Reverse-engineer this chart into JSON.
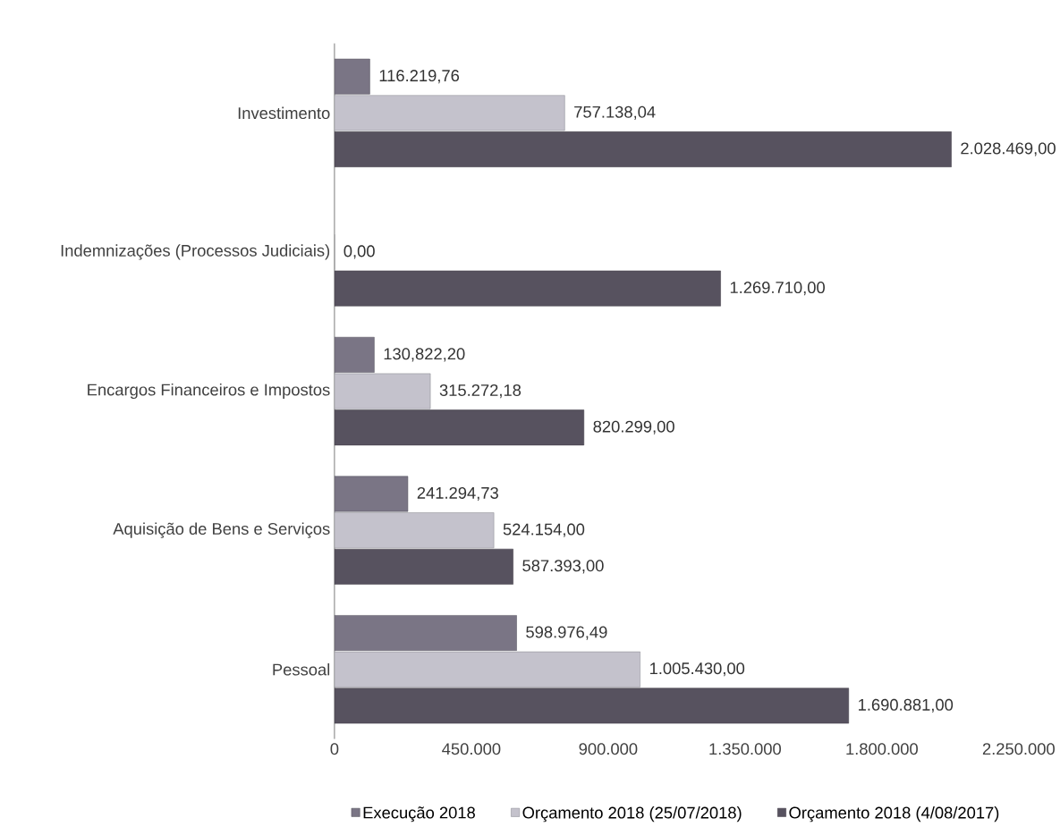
{
  "chart_data": {
    "type": "bar",
    "orientation": "horizontal",
    "categories": [
      "Investimento",
      "Indemnizações (Processos Judiciais)",
      "Encargos Financeiros e Impostos",
      "Aquisição de Bens e Serviços",
      "Pessoal"
    ],
    "series": [
      {
        "name": "Execução 2018",
        "color": "#7a7585",
        "values": [
          116219.76,
          null,
          130822.2,
          241294.73,
          598976.49
        ],
        "value_labels": [
          "116.219,76",
          null,
          "130,822,20",
          "241.294,73",
          "598.976,49"
        ]
      },
      {
        "name": "Orçamento 2018 (25/07/2018)",
        "color": "#c4c2cc",
        "values": [
          757138.04,
          0,
          315272.18,
          524154,
          1005430
        ],
        "value_labels": [
          "757.138,04",
          "0,00",
          "315.272,18",
          "524.154,00",
          "1.005.430,00"
        ]
      },
      {
        "name": "Orçamento 2018 (4/08/2017)",
        "color": "#57525f",
        "values": [
          2028469,
          1269710,
          820299,
          587393,
          1690881
        ],
        "value_labels": [
          "2.028.469,00",
          "1.269.710,00",
          "820.299,00",
          "587.393,00",
          "1.690.881,00"
        ]
      }
    ],
    "xlim": [
      0,
      2250000
    ],
    "xticks": [
      {
        "value": 0,
        "label": "0"
      },
      {
        "value": 450000,
        "label": "450.000"
      },
      {
        "value": 900000,
        "label": "900.000"
      },
      {
        "value": 1350000,
        "label": "1.350.000"
      },
      {
        "value": 1800000,
        "label": "1.800.000"
      },
      {
        "value": 2250000,
        "label": "2.250.000"
      }
    ],
    "grid": false,
    "legend": "bottom"
  }
}
